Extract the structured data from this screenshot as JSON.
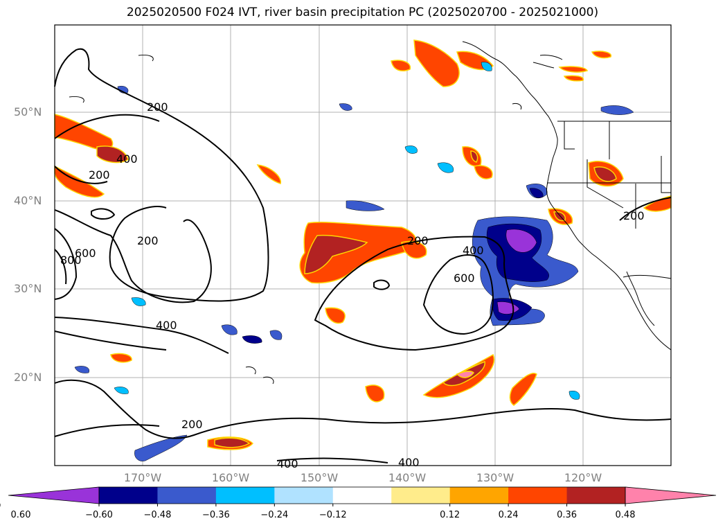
{
  "title": "2025020500 F024 IVT, river basin precipitation PC (2025020700 - 2025021000)",
  "latitude_labels": [
    "50°N",
    "40°N",
    "30°N",
    "20°N"
  ],
  "longitude_labels": [
    "170°W",
    "160°W",
    "150°W",
    "140°W",
    "130°W",
    "120°W"
  ],
  "ivt_contour_labels": [
    "200",
    "400",
    "200",
    "200",
    "800",
    "600",
    "400",
    "200",
    "400",
    "600",
    "200",
    "200",
    "400",
    "400"
  ],
  "colorbar": {
    "ticks": [
      "−0.60",
      "−0.48",
      "−0.36",
      "−0.24",
      "−0.12",
      "0.12",
      "0.24",
      "0.36",
      "0.48",
      "0.60"
    ],
    "colors": [
      "#9933d9",
      "#00008b",
      "#3a5acd",
      "#00bfff",
      "#b0e2ff",
      "#ffffff",
      "#ffec8b",
      "#ffa500",
      "#ff4500",
      "#b22222",
      "#ff82ab"
    ]
  }
}
